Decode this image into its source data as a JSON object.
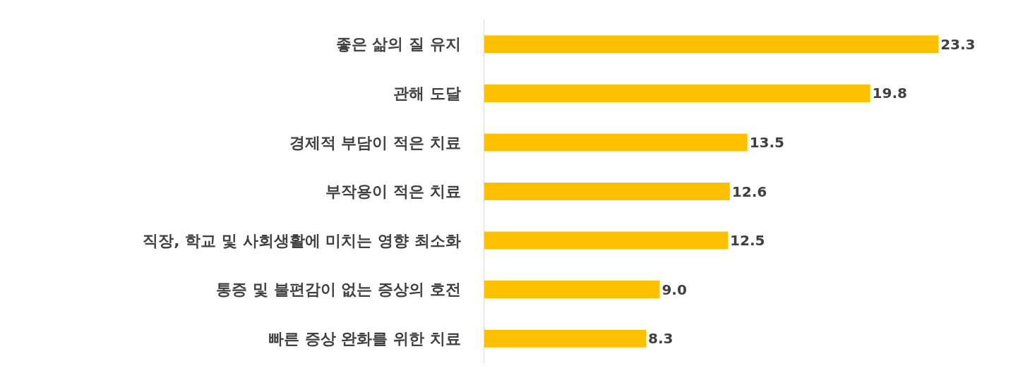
{
  "chart_data": {
    "type": "bar",
    "orientation": "horizontal",
    "categories": [
      "좋은 삶의 질 유지",
      "관해 도달",
      "경제적 부담이 적은 치료",
      "부작용이 적은 치료",
      "직장, 학교 및 사회생활에 미치는 영향 최소화",
      "통증 및 불편감이 없는 증상의 호전",
      "빠른 증상 완화를 위한 치료"
    ],
    "values": [
      23.3,
      19.8,
      13.5,
      12.6,
      12.5,
      9.0,
      8.3
    ],
    "value_labels": [
      "23.3",
      "19.8",
      "13.5",
      "12.6",
      "12.5",
      "9.0",
      "8.3"
    ],
    "color": "#ffc000",
    "grid": false,
    "tick_labels": "y"
  }
}
